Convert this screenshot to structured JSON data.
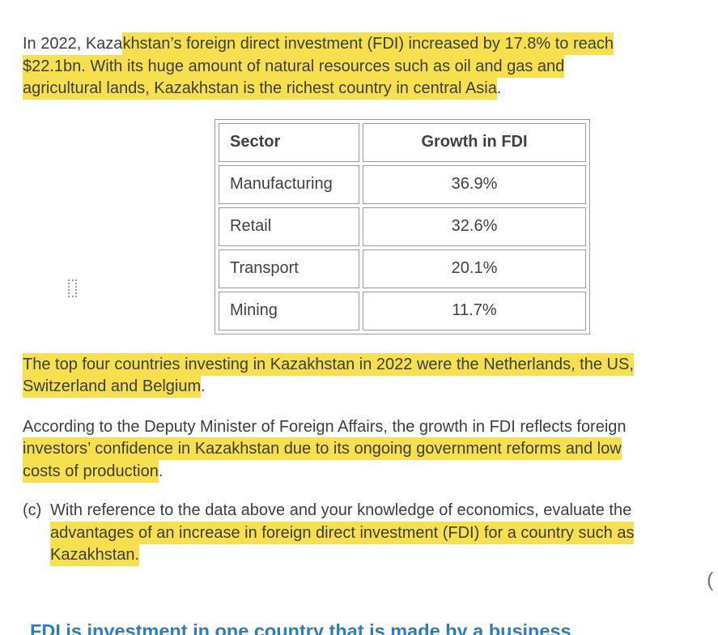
{
  "page": {
    "background": "#ffffff",
    "text_color": "#3e3e3e",
    "highlight_color": "#f6e04e",
    "table_border_color": "#9b9b9b",
    "answer_color": "#2e7cbf"
  },
  "passage": {
    "paragraphs": [
      {
        "name": "fdi-intro",
        "lines": [
          [
            {
              "t": "In 2022, Kaza",
              "h": false
            },
            {
              "t": "khstan’s foreign direct investment (FDI) increased by 17.8% to reach",
              "h": true
            }
          ],
          [
            {
              "t": "$22.1bn. With its huge amount of natural resources such as oil and gas and",
              "h": true
            }
          ],
          [
            {
              "t": "agricultural lands, Kazakhstan is the richest country in central Asia",
              "h": true
            },
            {
              "t": ".",
              "h": false
            }
          ]
        ]
      },
      {
        "name": "top-countries",
        "lines": [
          [
            {
              "t": "The top four countries investing in Kazakhstan in 2022 were the Netherlands, the US,",
              "h": true
            }
          ],
          [
            {
              "t": "Switzerland and Belgium",
              "h": true
            },
            {
              "t": ".",
              "h": false
            }
          ]
        ]
      },
      {
        "name": "minister-quote",
        "lines": [
          [
            {
              "t": "According to the Deputy Minister of Foreign Affairs, the growth in FDI reflects foreign",
              "h": false
            }
          ],
          [
            {
              "t": "investors’ confidence in Kazakhstan due to its ongoing government reforms and low",
              "h": true
            }
          ],
          [
            {
              "t": "costs of production",
              "h": true
            },
            {
              "t": ".",
              "h": false
            }
          ]
        ]
      }
    ]
  },
  "table": {
    "columns": [
      "Sector",
      "Growth in FDI"
    ],
    "rows": [
      {
        "sector": "Manufacturing",
        "growth": "36.9%"
      },
      {
        "sector": "Retail",
        "growth": "32.6%"
      },
      {
        "sector": "Transport",
        "growth": "20.1%"
      },
      {
        "sector": "Mining",
        "growth": "11.7%"
      }
    ]
  },
  "question": {
    "label": "(c)",
    "lines": [
      [
        {
          "t": "With reference to the data above and your knowledge of economics, evaluate the",
          "h": false
        }
      ],
      [
        {
          "t": "advantages of an increase in foreign direct investment (FDI) for a country such as",
          "h": true
        }
      ],
      [
        {
          "t": "Kazakhstan.",
          "h": true
        }
      ]
    ]
  },
  "marks_paren": "(",
  "answer_preview": "FDI is investment in one country that is made by a business"
}
